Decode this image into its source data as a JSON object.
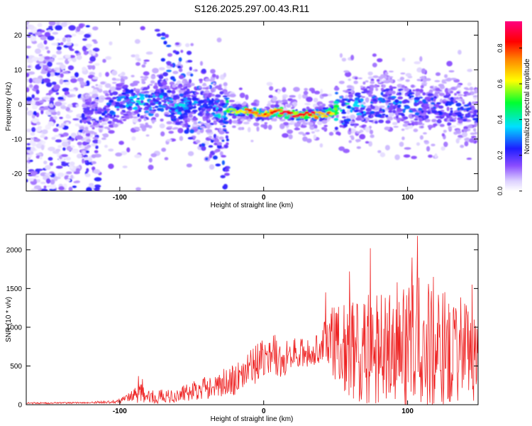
{
  "figure_title": "S126.2025.297.00.43.R11",
  "chart_data": [
    {
      "type": "heatmap",
      "title": "S126.2025.297.00.43.R11",
      "xlabel": "Height of straight line (km)",
      "ylabel": "Frequency (Hz)",
      "xlim": [
        -165,
        149
      ],
      "ylim": [
        -25,
        24
      ],
      "xticks": [
        -100,
        0,
        100
      ],
      "yticks": [
        -20,
        -10,
        0,
        10,
        20
      ],
      "colorbar": {
        "label": "Normalized spectral amplitude",
        "range": [
          0,
          0.95
        ],
        "ticks": [
          0.0,
          0.2,
          0.4,
          0.6,
          0.8
        ]
      },
      "ridge": {
        "description": "dominant spectral band",
        "x": [
          -125,
          -110,
          -95,
          -80,
          -70,
          -60,
          -50,
          -40,
          -30,
          -20,
          -10,
          0,
          10,
          20,
          30,
          40,
          50,
          60,
          80,
          100,
          120,
          145
        ],
        "freq": [
          -3,
          -2,
          1,
          0,
          1,
          -1,
          1,
          0,
          -2,
          -2,
          -2,
          -3,
          -2,
          -3,
          -3,
          -3,
          -2,
          -1,
          0,
          0,
          -1,
          -2
        ],
        "amplitude": [
          0.25,
          0.3,
          0.4,
          0.4,
          0.45,
          0.4,
          0.35,
          0.3,
          0.45,
          0.7,
          0.85,
          0.9,
          0.95,
          0.9,
          0.95,
          0.9,
          0.7,
          0.4,
          0.35,
          0.35,
          0.3,
          0.3
        ]
      }
    },
    {
      "type": "line",
      "xlabel": "Height of straight line (km)",
      "ylabel": "SNR (10 * v/v)",
      "xlim": [
        -165,
        149
      ],
      "ylim": [
        0,
        2200
      ],
      "xticks": [
        -100,
        0,
        100
      ],
      "yticks": [
        0,
        500,
        1000,
        1500,
        2000
      ],
      "color": "#ee2222",
      "envelope": {
        "x": [
          -165,
          -120,
          -100,
          -90,
          -85,
          -80,
          -60,
          -40,
          -20,
          -10,
          0,
          8,
          10,
          20,
          30,
          40,
          45,
          50,
          60,
          70,
          75,
          80,
          90,
          100,
          105,
          110,
          120,
          130,
          140,
          149
        ],
        "mean": [
          20,
          25,
          50,
          120,
          180,
          90,
          120,
          220,
          330,
          450,
          620,
          660,
          500,
          680,
          640,
          720,
          870,
          800,
          700,
          700,
          720,
          720,
          720,
          720,
          730,
          740,
          720,
          720,
          720,
          720
        ],
        "amplitude": [
          10,
          10,
          30,
          80,
          180,
          90,
          100,
          150,
          200,
          250,
          250,
          250,
          250,
          200,
          200,
          200,
          400,
          500,
          650,
          700,
          750,
          800,
          700,
          800,
          900,
          1000,
          800,
          750,
          700,
          700
        ]
      },
      "peaks": [
        {
          "x": -87,
          "y": 370
        },
        {
          "x": 8,
          "y": 900
        },
        {
          "x": 43,
          "y": 1450
        },
        {
          "x": 60,
          "y": 1720
        },
        {
          "x": 74,
          "y": 2020
        },
        {
          "x": 93,
          "y": 1580
        },
        {
          "x": 103,
          "y": 1900
        },
        {
          "x": 107,
          "y": 2180
        },
        {
          "x": 118,
          "y": 1650
        },
        {
          "x": 145,
          "y": 1550
        }
      ]
    }
  ]
}
